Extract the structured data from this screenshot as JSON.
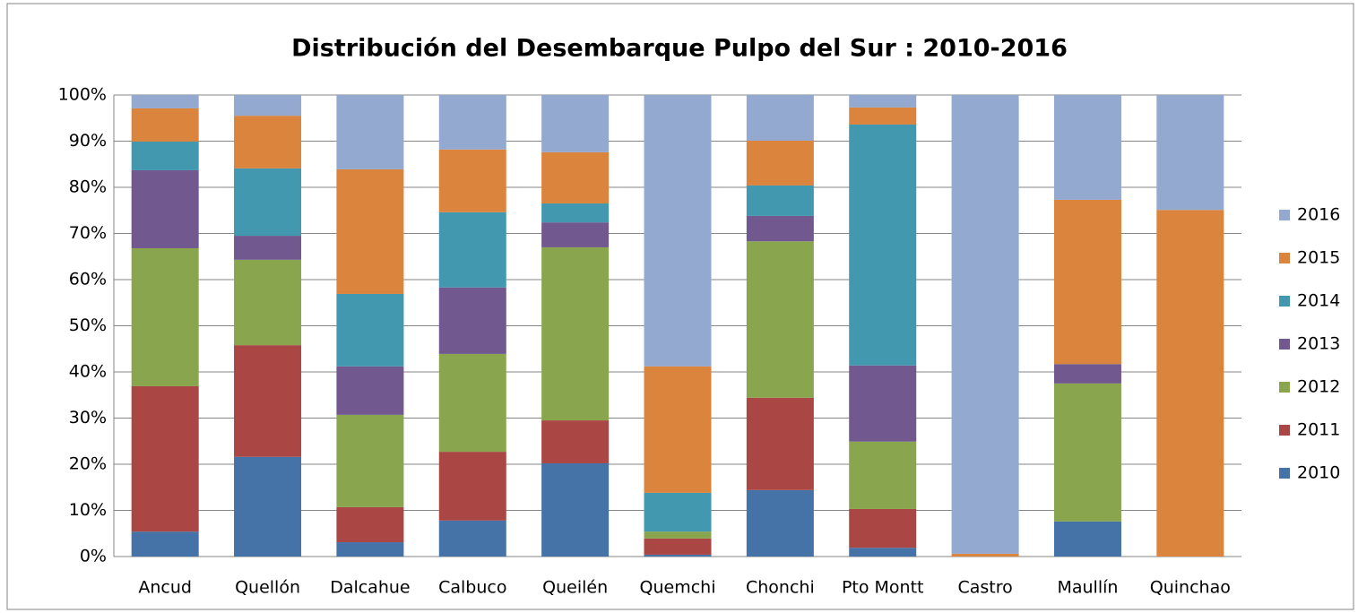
{
  "chart_data": {
    "type": "stacked_bar_percent",
    "title": "Distribución del Desembarque Pulpo del Sur : 2010-2016",
    "categories": [
      "Ancud",
      "Quellón",
      "Dalcahue",
      "Calbuco",
      "Queilén",
      "Quemchi",
      "Chonchi",
      "Pto Montt",
      "Castro",
      "Maullín",
      "Quinchao"
    ],
    "series": [
      {
        "name": "2010",
        "color": "#4572a7",
        "values": [
          5.4,
          21.6,
          3.1,
          7.8,
          20.2,
          0.4,
          14.4,
          1.9,
          0,
          7.6,
          0
        ]
      },
      {
        "name": "2011",
        "color": "#aa4643",
        "values": [
          31.5,
          24.2,
          7.6,
          14.9,
          9.3,
          3.5,
          20.0,
          8.4,
          0,
          0,
          0
        ]
      },
      {
        "name": "2012",
        "color": "#89a54e",
        "values": [
          29.9,
          18.5,
          20.0,
          21.2,
          37.5,
          1.5,
          33.9,
          14.6,
          0,
          29.9,
          0
        ]
      },
      {
        "name": "2013",
        "color": "#71588f",
        "values": [
          16.9,
          5.2,
          10.5,
          14.4,
          5.4,
          0,
          5.5,
          16.5,
          0,
          4.2,
          0
        ]
      },
      {
        "name": "2014",
        "color": "#4198af",
        "values": [
          6.2,
          14.6,
          15.7,
          16.3,
          4.1,
          8.4,
          6.6,
          52.2,
          0,
          0,
          0
        ]
      },
      {
        "name": "2015",
        "color": "#db843d",
        "values": [
          7.2,
          11.4,
          27.0,
          13.6,
          11.1,
          27.4,
          9.7,
          3.7,
          0.6,
          35.6,
          75.1
        ]
      },
      {
        "name": "2016",
        "color": "#93a9cf",
        "values": [
          2.9,
          4.5,
          16.1,
          11.8,
          12.4,
          58.8,
          9.9,
          2.7,
          99.4,
          22.7,
          24.9
        ]
      }
    ],
    "ylim": [
      0,
      100
    ],
    "yticks": [
      {
        "value": 0,
        "label": "0%"
      },
      {
        "value": 10,
        "label": "10%"
      },
      {
        "value": 20,
        "label": "20%"
      },
      {
        "value": 30,
        "label": "30%"
      },
      {
        "value": 40,
        "label": "40%"
      },
      {
        "value": 50,
        "label": "50%"
      },
      {
        "value": 60,
        "label": "60%"
      },
      {
        "value": 70,
        "label": "70%"
      },
      {
        "value": 80,
        "label": "80%"
      },
      {
        "value": 90,
        "label": "90%"
      },
      {
        "value": 100,
        "label": "100%"
      }
    ],
    "grid": true,
    "legend": "right"
  }
}
